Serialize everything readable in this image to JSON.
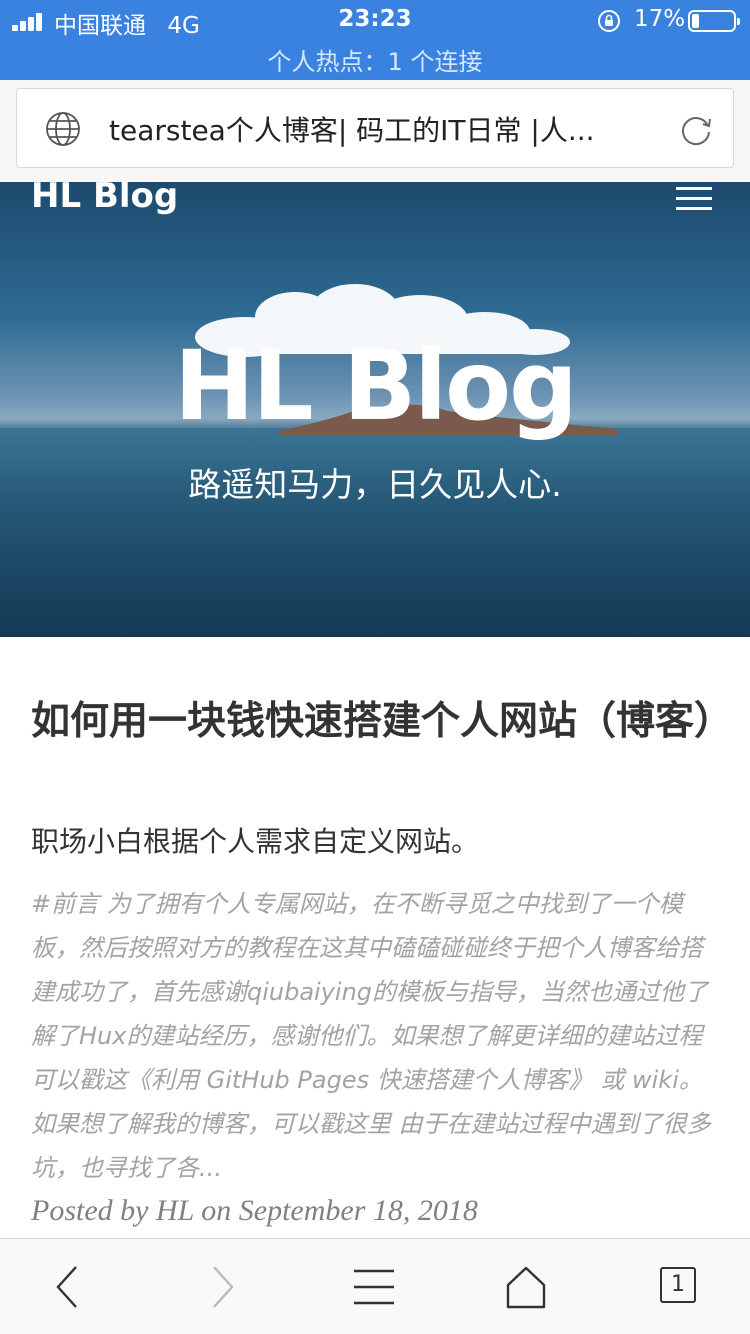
{
  "status_bar": {
    "carrier": "中国联通",
    "network": "4G",
    "time": "23:23",
    "battery_percent": "17%",
    "battery_level": 0.17,
    "hotspot_text": "个人热点：1 个连接"
  },
  "browser": {
    "address_text": "tearstea个人博客| 码工的IT日常 |人..."
  },
  "navbar": {
    "brand": "HL Blog"
  },
  "hero": {
    "title": "HL Blog",
    "subtitle": "路遥知马力，日久见人心."
  },
  "post": {
    "title": "如何用一块钱快速搭建个人网站（博客）",
    "subtitle": "职场小白根据个人需求自定义网站。",
    "excerpt": "#前言 为了拥有个人专属网站，在不断寻觅之中找到了一个模板，然后按照对方的教程在这其中磕磕碰碰终于把个人博客给搭建成功了，首先感谢qiubaiying的模板与指导，当然也通过他了解了Hux的建站经历，感谢他们。如果想了解更详细的建站过程可以戳这《利用 GitHub Pages 快速搭建个人博客》 或 wiki。 如果想了解我的博客，可以戳这里 由于在建站过程中遇到了很多坑，也寻找了各...",
    "meta": "Posted by HL on September 18, 2018"
  },
  "toolbar": {
    "tab_count": "1",
    "icons": [
      "back-icon",
      "forward-icon",
      "menu-icon",
      "home-icon",
      "tabs-icon"
    ]
  },
  "colors": {
    "status_bar": "#3a82e0",
    "excerpt": "#a3a3a3",
    "meta": "#808080"
  }
}
